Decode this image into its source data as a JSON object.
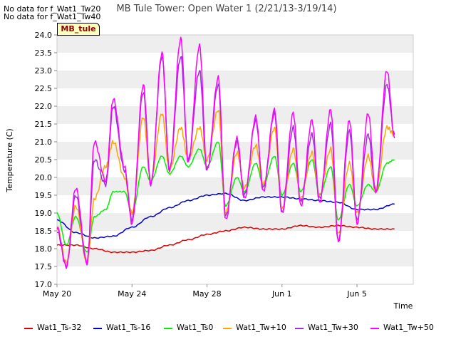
{
  "header": {
    "no_data_1": "No data for f_Wat1_Tw20",
    "no_data_2": "No data for f_Wat1_Tw40",
    "badge": "MB_tule"
  },
  "chart_data": {
    "type": "line",
    "title": "MB Tule Tower: Open Water 1 (2/21/13-3/19/14)",
    "xlabel": "Time",
    "ylabel": "Temperature (C)",
    "ylim": [
      17.0,
      24.0
    ],
    "yticks": [
      "17.0",
      "17.5",
      "18.0",
      "18.5",
      "19.0",
      "19.5",
      "20.0",
      "20.5",
      "21.0",
      "21.5",
      "22.0",
      "22.5",
      "23.0",
      "23.5",
      "24.0"
    ],
    "xlim": [
      "2014-05-20",
      "2014-06-08"
    ],
    "xticks": [
      {
        "date": "2014-05-20",
        "label": "May 20"
      },
      {
        "date": "2014-05-24",
        "label": "May 24"
      },
      {
        "date": "2014-05-28",
        "label": "May 28"
      },
      {
        "date": "2014-06-01",
        "label": "Jun 1"
      },
      {
        "date": "2014-06-05",
        "label": "Jun 5"
      }
    ],
    "grid": "horizontal-bands",
    "legend": "bottom",
    "series": [
      {
        "name": "Wat1_Ts-32",
        "color": "#dd0000",
        "x": [
          "2014-05-20",
          "2014-05-21",
          "2014-05-22",
          "2014-05-23",
          "2014-05-24",
          "2014-05-25",
          "2014-05-26",
          "2014-05-27",
          "2014-05-28",
          "2014-05-29",
          "2014-05-30",
          "2014-05-31",
          "2014-06-01",
          "2014-06-02",
          "2014-06-03",
          "2014-06-04",
          "2014-06-05",
          "2014-06-06",
          "2014-06-07"
        ],
        "values": [
          18.1,
          18.1,
          18.0,
          17.9,
          17.9,
          17.95,
          18.1,
          18.25,
          18.4,
          18.5,
          18.6,
          18.55,
          18.55,
          18.65,
          18.6,
          18.65,
          18.6,
          18.55,
          18.55
        ]
      },
      {
        "name": "Wat1_Ts-16",
        "color": "#0000cc",
        "x": [
          "2014-05-20",
          "2014-05-21",
          "2014-05-22",
          "2014-05-23",
          "2014-05-24",
          "2014-05-25",
          "2014-05-26",
          "2014-05-27",
          "2014-05-28",
          "2014-05-29",
          "2014-05-30",
          "2014-05-31",
          "2014-06-01",
          "2014-06-02",
          "2014-06-03",
          "2014-06-04",
          "2014-06-05",
          "2014-06-06",
          "2014-06-07"
        ],
        "values": [
          18.8,
          18.45,
          18.3,
          18.35,
          18.6,
          18.9,
          19.15,
          19.35,
          19.5,
          19.55,
          19.35,
          19.45,
          19.45,
          19.4,
          19.35,
          19.3,
          19.1,
          19.1,
          19.25
        ]
      },
      {
        "name": "Wat1_Ts0",
        "color": "#00ee00",
        "x": [
          "2014-05-20",
          "2014-05-20.5",
          "2014-05-21",
          "2014-05-21.6",
          "2014-05-22",
          "2014-05-22.6",
          "2014-05-23",
          "2014-05-23.6",
          "2014-05-24",
          "2014-05-24.6",
          "2014-05-25",
          "2014-05-25.6",
          "2014-05-26",
          "2014-05-26.6",
          "2014-05-27",
          "2014-05-27.6",
          "2014-05-28",
          "2014-05-28.6",
          "2014-05-29",
          "2014-05-29.6",
          "2014-05-30",
          "2014-05-30.6",
          "2014-05-31",
          "2014-05-31.6",
          "2014-06-01",
          "2014-06-01.6",
          "2014-06-02",
          "2014-06-02.6",
          "2014-06-03",
          "2014-06-03.6",
          "2014-06-04",
          "2014-06-04.6",
          "2014-06-05",
          "2014-06-05.6",
          "2014-06-06",
          "2014-06-06.6",
          "2014-06-07"
        ],
        "values": [
          19.0,
          18.1,
          18.9,
          17.9,
          18.9,
          19.1,
          19.6,
          19.6,
          19.0,
          20.3,
          19.9,
          20.6,
          20.1,
          20.6,
          20.3,
          20.8,
          20.3,
          21.0,
          19.2,
          20.0,
          19.6,
          20.4,
          19.8,
          20.6,
          19.5,
          20.4,
          19.6,
          20.5,
          19.5,
          20.3,
          18.8,
          19.8,
          19.2,
          19.8,
          19.6,
          20.4,
          20.5
        ]
      },
      {
        "name": "Wat1_Tw+10",
        "color": "#ffa500",
        "x": [
          "2014-05-20",
          "2014-05-20.5",
          "2014-05-21",
          "2014-05-21.6",
          "2014-05-22",
          "2014-05-22.6",
          "2014-05-23",
          "2014-05-23.6",
          "2014-05-24",
          "2014-05-24.6",
          "2014-05-25",
          "2014-05-25.6",
          "2014-05-26",
          "2014-05-26.6",
          "2014-05-27",
          "2014-05-27.6",
          "2014-05-28",
          "2014-05-28.6",
          "2014-05-29",
          "2014-05-29.6",
          "2014-05-30",
          "2014-05-30.6",
          "2014-05-31",
          "2014-05-31.6",
          "2014-06-01",
          "2014-06-01.6",
          "2014-06-02",
          "2014-06-02.6",
          "2014-06-03",
          "2014-06-03.6",
          "2014-06-04",
          "2014-06-04.6",
          "2014-06-05",
          "2014-06-05.6",
          "2014-06-06",
          "2014-06-06.6",
          "2014-06-07"
        ],
        "values": [
          18.6,
          17.6,
          19.2,
          17.6,
          19.4,
          20.3,
          21.0,
          20.0,
          19.0,
          21.7,
          19.9,
          21.8,
          20.2,
          21.4,
          20.5,
          21.4,
          20.5,
          21.9,
          19.0,
          20.7,
          19.7,
          20.9,
          19.8,
          21.4,
          19.1,
          20.8,
          19.4,
          20.7,
          19.5,
          20.8,
          18.4,
          20.4,
          19.0,
          20.6,
          19.6,
          21.4,
          21.2
        ]
      },
      {
        "name": "Wat1_Tw+30",
        "color": "#9b30e0",
        "x": [
          "2014-05-20",
          "2014-05-20.5",
          "2014-05-21",
          "2014-05-21.6",
          "2014-05-22",
          "2014-05-22.6",
          "2014-05-23",
          "2014-05-23.6",
          "2014-05-24",
          "2014-05-24.6",
          "2014-05-25",
          "2014-05-25.6",
          "2014-05-26",
          "2014-05-26.6",
          "2014-05-27",
          "2014-05-27.6",
          "2014-05-28",
          "2014-05-28.6",
          "2014-05-29",
          "2014-05-29.6",
          "2014-05-30",
          "2014-05-30.6",
          "2014-05-31",
          "2014-05-31.6",
          "2014-06-01",
          "2014-06-01.6",
          "2014-06-02",
          "2014-06-02.6",
          "2014-06-03",
          "2014-06-03.6",
          "2014-06-04",
          "2014-06-04.6",
          "2014-06-05",
          "2014-06-05.6",
          "2014-06-06",
          "2014-06-06.6",
          "2014-06-07"
        ],
        "values": [
          18.5,
          17.5,
          19.5,
          17.6,
          20.5,
          19.8,
          22.0,
          20.2,
          18.8,
          22.4,
          19.8,
          23.4,
          20.2,
          23.4,
          20.5,
          23.0,
          20.2,
          22.6,
          18.9,
          21.0,
          19.5,
          21.6,
          19.7,
          21.8,
          19.0,
          21.4,
          19.3,
          21.2,
          19.4,
          21.5,
          18.2,
          21.3,
          18.8,
          21.2,
          19.6,
          22.6,
          21.2
        ]
      },
      {
        "name": "Wat1_Tw+50",
        "color": "#ff00ff",
        "x": [
          "2014-05-20",
          "2014-05-20.5",
          "2014-05-21",
          "2014-05-21.6",
          "2014-05-22",
          "2014-05-22.6",
          "2014-05-23",
          "2014-05-23.6",
          "2014-05-24",
          "2014-05-24.6",
          "2014-05-25",
          "2014-05-25.6",
          "2014-05-26",
          "2014-05-26.6",
          "2014-05-27",
          "2014-05-27.6",
          "2014-05-28",
          "2014-05-28.6",
          "2014-05-29",
          "2014-05-29.6",
          "2014-05-30",
          "2014-05-30.6",
          "2014-05-31",
          "2014-05-31.6",
          "2014-06-01",
          "2014-06-01.6",
          "2014-06-02",
          "2014-06-02.6",
          "2014-06-03",
          "2014-06-03.6",
          "2014-06-04",
          "2014-06-04.6",
          "2014-06-05",
          "2014-06-05.6",
          "2014-06-06",
          "2014-06-06.6",
          "2014-06-07"
        ],
        "values": [
          18.6,
          17.5,
          19.7,
          17.6,
          21.0,
          19.9,
          22.2,
          20.3,
          18.7,
          22.6,
          19.8,
          23.5,
          20.2,
          23.9,
          20.4,
          23.7,
          20.2,
          22.8,
          18.8,
          21.1,
          19.4,
          21.7,
          19.6,
          21.9,
          19.0,
          21.8,
          19.2,
          21.6,
          19.3,
          21.9,
          18.2,
          21.6,
          18.7,
          21.8,
          19.6,
          23.0,
          21.1
        ]
      }
    ]
  }
}
